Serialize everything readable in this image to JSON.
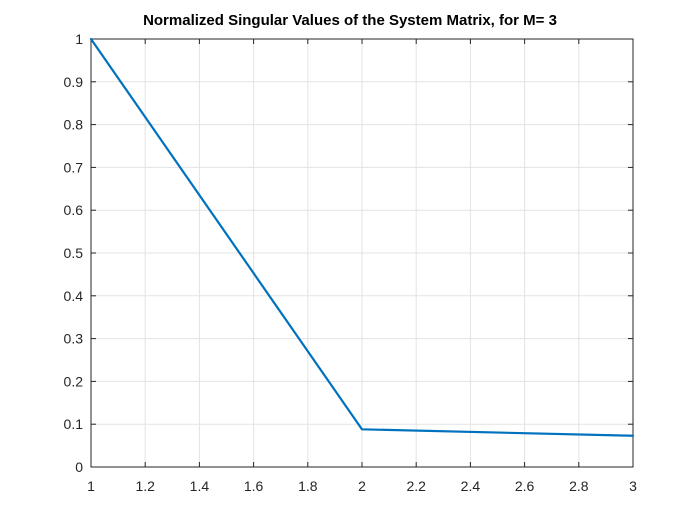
{
  "chart_data": {
    "type": "line",
    "title": "Normalized Singular Values of the System Matrix, for M= 3",
    "xlabel": "",
    "ylabel": "",
    "xlim": [
      1,
      3
    ],
    "ylim": [
      0,
      1
    ],
    "xticks": [
      1,
      1.2,
      1.4,
      1.6,
      1.8,
      2,
      2.2,
      2.4,
      2.6,
      2.8,
      3
    ],
    "xtick_labels": [
      "1",
      "1.2",
      "1.4",
      "1.6",
      "1.8",
      "2",
      "2.2",
      "2.4",
      "2.6",
      "2.8",
      "3"
    ],
    "yticks": [
      0,
      0.1,
      0.2,
      0.3,
      0.4,
      0.5,
      0.6,
      0.7,
      0.8,
      0.9,
      1
    ],
    "ytick_labels": [
      "0",
      "0.1",
      "0.2",
      "0.3",
      "0.4",
      "0.5",
      "0.6",
      "0.7",
      "0.8",
      "0.9",
      "1"
    ],
    "grid": true,
    "series": [
      {
        "x": [
          1,
          2,
          3
        ],
        "values": [
          1,
          0.088,
          0.073
        ],
        "color": "#0072BD"
      }
    ]
  }
}
